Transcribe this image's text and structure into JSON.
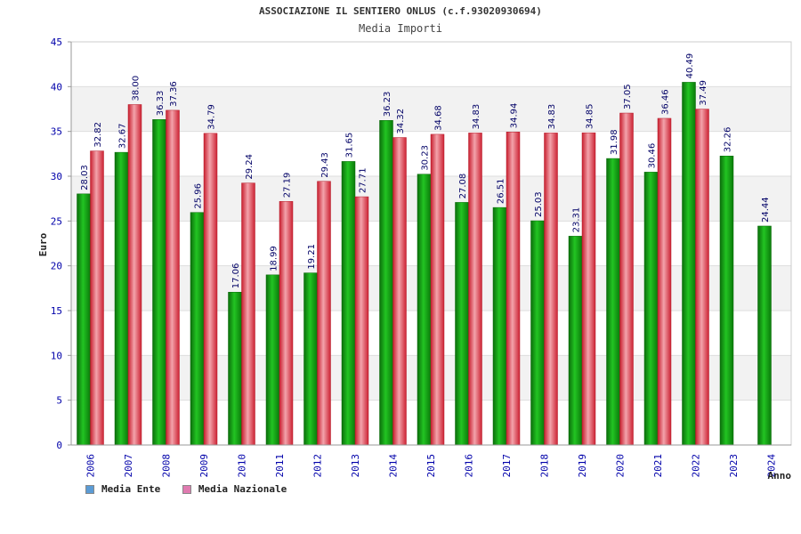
{
  "chart_data": {
    "type": "bar",
    "title": "ASSOCIAZIONE IL SENTIERO ONLUS (c.f.93020930694)",
    "subtitle": "Media Importi",
    "xlabel": "Anno",
    "ylabel": "Euro",
    "ylim": [
      0,
      45
    ],
    "yticks": [
      0,
      5,
      10,
      15,
      20,
      25,
      30,
      35,
      40,
      45
    ],
    "grid": true,
    "legend_position": "bottom-left",
    "categories": [
      "2006",
      "2007",
      "2008",
      "2009",
      "2010",
      "2011",
      "2012",
      "2013",
      "2014",
      "2015",
      "2016",
      "2017",
      "2018",
      "2019",
      "2020",
      "2021",
      "2022",
      "2023",
      "2024"
    ],
    "series": [
      {
        "name": "Media Ente",
        "legend_color": "#5b9bd5",
        "bar_color": "#1fa31f",
        "values": [
          28.03,
          32.67,
          36.33,
          25.96,
          17.06,
          18.99,
          19.21,
          31.65,
          36.23,
          30.23,
          27.08,
          26.51,
          25.03,
          23.31,
          31.98,
          30.46,
          40.49,
          32.26,
          24.44
        ],
        "labels": [
          "28.03",
          "32.67",
          "36.33",
          "25.96",
          "17.06",
          "18.99",
          "19.21",
          "31.65",
          "36.23",
          "30.23",
          "27.08",
          "26.51",
          "25.03",
          "23.31",
          "31.98",
          "30.46",
          "40.49",
          "32.26",
          "24.44"
        ]
      },
      {
        "name": "Media Nazionale",
        "legend_color": "#e07bb0",
        "bar_color": "#e03a4a",
        "values": [
          32.82,
          38.0,
          37.36,
          34.79,
          29.24,
          27.19,
          29.43,
          27.71,
          34.32,
          34.68,
          34.83,
          34.94,
          34.83,
          34.85,
          37.05,
          36.46,
          37.49,
          null,
          null
        ],
        "labels": [
          "32.82",
          "38.00",
          "37.36",
          "34.79",
          "29.24",
          "27.19",
          "29.43",
          "27.71",
          "34.32",
          "34.68",
          "34.83",
          "34.94",
          "34.83",
          "34.85",
          "37.05",
          "36.46",
          "37.49",
          null,
          null
        ]
      }
    ]
  },
  "colors": {
    "axis_text": "#0000aa",
    "band": "#f2f2f2",
    "grid": "#dddddd",
    "value_label": "#000066"
  }
}
